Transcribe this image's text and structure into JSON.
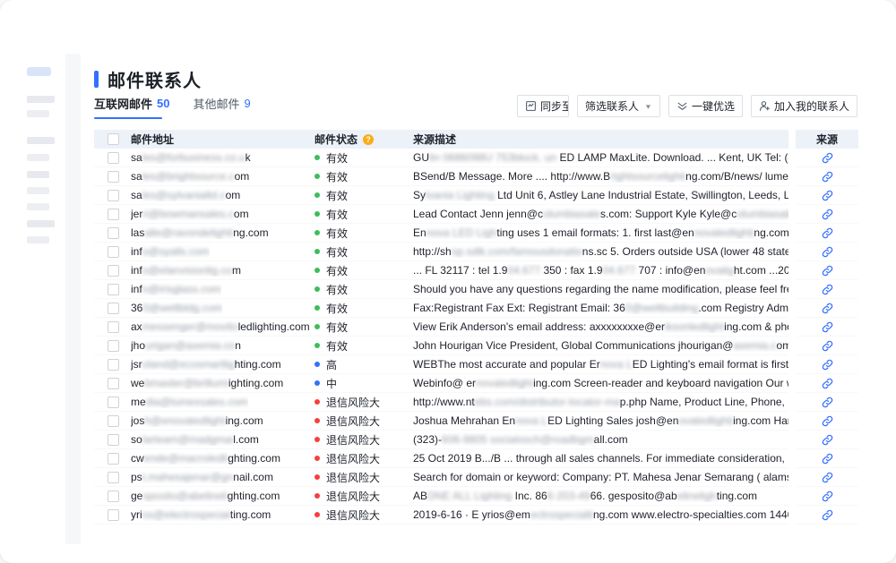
{
  "colors": {
    "accent": "#3370ff",
    "valid_green": "#3dbd5b",
    "level_blue": "#3370ff",
    "risk_red": "#f53f3f",
    "help_orange": "#faad14"
  },
  "page": {
    "title": "邮件联系人"
  },
  "tabs": [
    {
      "label": "互联网邮件",
      "count": "50",
      "active": true
    },
    {
      "label": "其他邮件",
      "count": "9",
      "active": false
    }
  ],
  "toolbar": {
    "sync_button": "同步至T...",
    "filter_button": "筛选联系人",
    "optimize_button": "一键优选",
    "add_contacts_button": "加入我的联系人"
  },
  "table": {
    "headers": {
      "email": "邮件地址",
      "status": "邮件状态",
      "description": "来源描述",
      "source": "来源"
    },
    "rows": [
      {
        "email": [
          {
            "t": "sa"
          },
          {
            "b": "les@forbusiness.co.u"
          },
          {
            "t": "k"
          }
        ],
        "status": {
          "label": "有效",
          "dot": "green"
        },
        "desc": [
          {
            "t": "GU"
          },
          {
            "b": "lin 0686098U 753block, un"
          },
          {
            "t": " ED LAMP MaxLite. Download. ... Kent, UK Tel: (44)132..."
          }
        ]
      },
      {
        "email": [
          {
            "t": "sa"
          },
          {
            "b": "les@brightsource.c"
          },
          {
            "t": "om"
          }
        ],
        "status": {
          "label": "有效",
          "dot": "green"
        },
        "desc": [
          {
            "t": "BSend/B Message. More .... http://www.B"
          },
          {
            "b": "rightsourcelighti"
          },
          {
            "t": "ng.com/B/news/ lumens_sp..."
          }
        ]
      },
      {
        "email": [
          {
            "t": "sa"
          },
          {
            "b": "les@sylvanialtd.c"
          },
          {
            "t": "om"
          }
        ],
        "status": {
          "label": "有效",
          "dot": "green"
        },
        "desc": [
          {
            "t": "Sy"
          },
          {
            "b": "lvania Lighting"
          },
          {
            "t": " Ltd Unit 6, Astley Lane Industrial Estate, Swillington, Leeds, LS26 8..."
          }
        ]
      },
      {
        "email": [
          {
            "t": "jer"
          },
          {
            "b": "ri@bowmansales.c"
          },
          {
            "t": "om"
          }
        ],
        "status": {
          "label": "有效",
          "dot": "green"
        },
        "desc": [
          {
            "t": "Lead Contact Jenn jenn@c"
          },
          {
            "b": "olumbiasale"
          },
          {
            "t": "s.com: Support Kyle Kyle@c"
          },
          {
            "b": "olumbiasales"
          },
          {
            "t": ".com. Wi..."
          }
        ]
      },
      {
        "email": [
          {
            "t": "las"
          },
          {
            "b": "alle@ravondelighti"
          },
          {
            "t": "ng.com"
          }
        ],
        "status": {
          "label": "有效",
          "dot": "green"
        },
        "desc": [
          {
            "t": "En"
          },
          {
            "b": "nova LED Ligh"
          },
          {
            "t": "ting uses 1 email formats: 1. first last@en"
          },
          {
            "b": "novaledlighti"
          },
          {
            "t": "ng.com (100.0..."
          }
        ]
      },
      {
        "email": [
          {
            "t": "inf"
          },
          {
            "b": "o@syalls.com"
          }
        ],
        "status": {
          "label": "有效",
          "dot": "green"
        },
        "desc": [
          {
            "t": "http://sh"
          },
          {
            "b": "op.sdlk.com/famousdonatio"
          },
          {
            "t": "ns.sc 5. Orders outside USA (lower 48 states) ..."
          }
        ]
      },
      {
        "email": [
          {
            "t": "inf"
          },
          {
            "b": "o@elanvisionlig.co"
          },
          {
            "t": "m"
          }
        ],
        "status": {
          "label": "有效",
          "dot": "green"
        },
        "desc": [
          {
            "t": "... FL 32117 : tel 1.9"
          },
          {
            "b": "04.677."
          },
          {
            "t": "350 : fax 1.9"
          },
          {
            "b": "04.677."
          },
          {
            "t": "707 : info@en"
          },
          {
            "b": "ovalig"
          },
          {
            "t": "ht.com ...2016-12..."
          }
        ]
      },
      {
        "email": [
          {
            "t": "inf"
          },
          {
            "b": "o@irisglass.com"
          }
        ],
        "status": {
          "label": "有效",
          "dot": "green"
        },
        "desc": [
          {
            "t": "Should you have any questions regarding the name modification, please feel free to co..."
          }
        ]
      },
      {
        "email": [
          {
            "t": "36"
          },
          {
            "b": "0@weltbldg.com"
          }
        ],
        "status": {
          "label": "有效",
          "dot": "green"
        },
        "desc": [
          {
            "t": "Fax:Registrant Fax Ext: Registrant Email: 36"
          },
          {
            "b": "0@weltbuilding"
          },
          {
            "t": ".com Registry Admin ID: Admi..."
          }
        ]
      },
      {
        "email": [
          {
            "t": "ax"
          },
          {
            "b": "messenger@movito"
          },
          {
            "t": "ledlighting.com"
          }
        ],
        "status": {
          "label": "有效",
          "dot": "green"
        },
        "desc": [
          {
            "t": "View Erik Anderson's email address: axxxxxxxxe@er"
          },
          {
            "b": "iksonledlight"
          },
          {
            "t": "ing.com & phone: +1-..."
          }
        ]
      },
      {
        "email": [
          {
            "t": "jho"
          },
          {
            "b": "urigan@axemia.co"
          },
          {
            "t": "n"
          }
        ],
        "status": {
          "label": "有效",
          "dot": "green"
        },
        "desc": [
          {
            "t": "John Hourigan Vice President, Global Communications jhourigan@"
          },
          {
            "b": "axemia.c"
          },
          {
            "t": "om. Meghan ..."
          }
        ]
      },
      {
        "email": [
          {
            "t": "jsr"
          },
          {
            "b": "oland@ecosmartlig"
          },
          {
            "t": "hting.com"
          }
        ],
        "status": {
          "label": "高",
          "dot": "blue"
        },
        "desc": [
          {
            "t": "WEBThe most accurate and popular Er"
          },
          {
            "b": "nova L"
          },
          {
            "t": "ED Lighting's email format is first [1 lett..."
          }
        ]
      },
      {
        "email": [
          {
            "t": "we"
          },
          {
            "b": "bmaster@brillumi"
          },
          {
            "t": "ighting.com"
          }
        ],
        "status": {
          "label": "中",
          "dot": "blue"
        },
        "desc": [
          {
            "t": "Webinfo@ er"
          },
          {
            "b": "novaledlight"
          },
          {
            "t": "ing.com Screen-reader and keyboard navigation Our websit..."
          }
        ]
      },
      {
        "email": [
          {
            "t": "me"
          },
          {
            "b": "dia@lumexsales.com"
          }
        ],
        "status": {
          "label": "退信风险大",
          "dot": "red"
        },
        "desc": [
          {
            "t": "http://www.nt"
          },
          {
            "b": "ebs.com/distributor-locator-ma"
          },
          {
            "t": "p.php Name, Product Line, Phone, Fa..."
          }
        ]
      },
      {
        "email": [
          {
            "t": "jos"
          },
          {
            "b": "h@enovatedlight"
          },
          {
            "t": "ing.com"
          }
        ],
        "status": {
          "label": "退信风险大",
          "dot": "red"
        },
        "desc": [
          {
            "t": "Joshua Mehrahan En"
          },
          {
            "b": "nova L"
          },
          {
            "t": "ED Lighting Sales josh@en"
          },
          {
            "b": "ovatedlighti"
          },
          {
            "t": "ing.com Harrison ..."
          }
        ]
      },
      {
        "email": [
          {
            "t": "so"
          },
          {
            "b": "larteam@madgmai"
          },
          {
            "t": "l.com"
          }
        ],
        "status": {
          "label": "退信风险大",
          "dot": "red"
        },
        "desc": [
          {
            "t": "(323)-"
          },
          {
            "b": "606-9805 socialosch@roadbgm"
          },
          {
            "t": "all.com"
          }
        ]
      },
      {
        "email": [
          {
            "t": "cw"
          },
          {
            "b": "ende@macroledli"
          },
          {
            "t": "ghting.com"
          }
        ],
        "status": {
          "label": "退信风险大",
          "dot": "red"
        },
        "desc": [
          {
            "t": "25 Oct 2019 B.../B ... through all sales channels. For immediate consideration, please ..."
          }
        ]
      },
      {
        "email": [
          {
            "t": "ps"
          },
          {
            "b": "t.mahesajenar@gn"
          },
          {
            "t": "nail.com"
          }
        ],
        "status": {
          "label": "退信风险大",
          "dot": "red"
        },
        "desc": [
          {
            "t": "Search for domain or keyword: Company: PT. Mahesa Jenar Semarang ( alamsyah suk..."
          }
        ]
      },
      {
        "email": [
          {
            "t": "ge"
          },
          {
            "b": "sposito@abelineli"
          },
          {
            "t": "ghting.com"
          }
        ],
        "status": {
          "label": "退信风险大",
          "dot": "red"
        },
        "desc": [
          {
            "t": "AB"
          },
          {
            "b": "DNE ALL Lighting"
          },
          {
            "t": " Inc. 86"
          },
          {
            "b": "6-203-49"
          },
          {
            "t": "66. gesposito@ab"
          },
          {
            "b": "elineligh"
          },
          {
            "t": "ting.com"
          }
        ]
      },
      {
        "email": [
          {
            "t": "yri"
          },
          {
            "b": "os@electrospecial"
          },
          {
            "t": "ting.com"
          }
        ],
        "status": {
          "label": "退信风险大",
          "dot": "red"
        },
        "desc": [
          {
            "t": "2019-6-16 · E yrios@em"
          },
          {
            "b": "ectrospecialti"
          },
          {
            "t": "ng.com www.electro-specialties.com 1440 Rocks..."
          }
        ]
      }
    ]
  }
}
